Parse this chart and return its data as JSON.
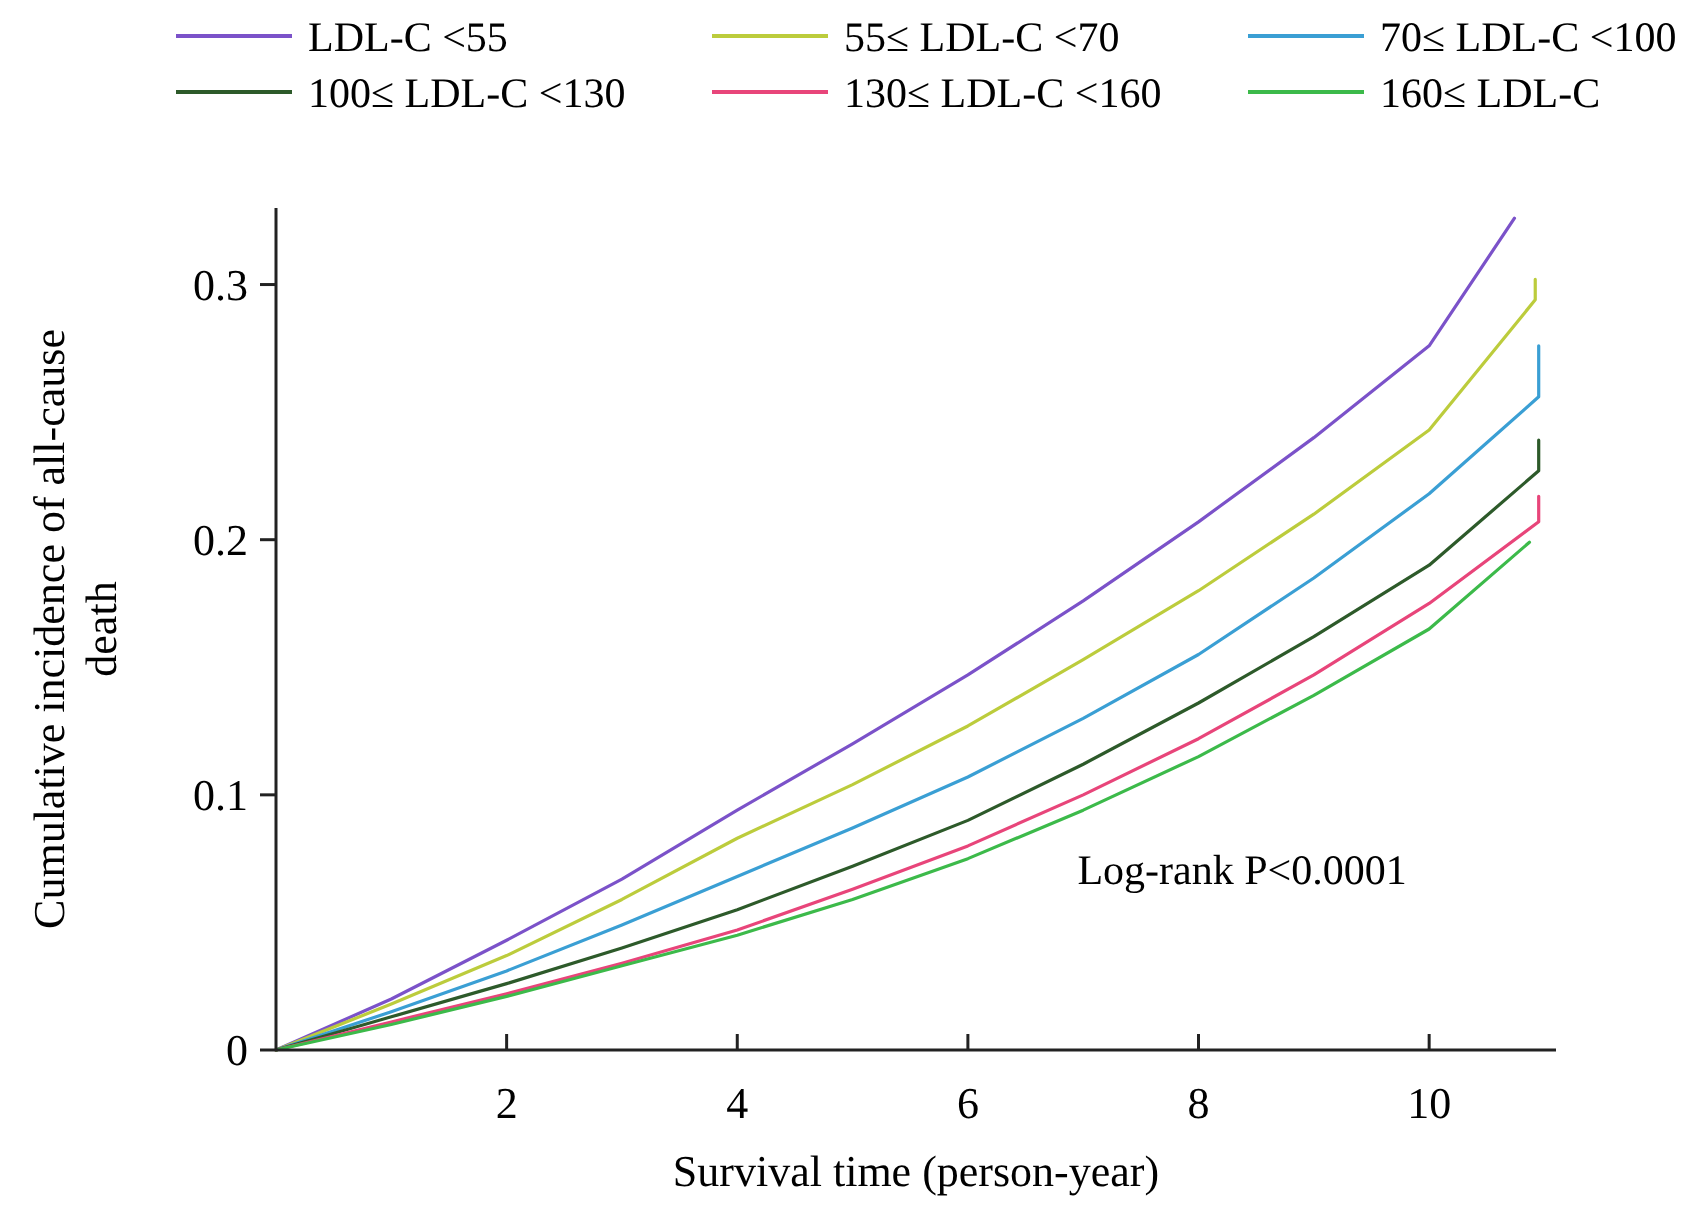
{
  "chart_data": {
    "type": "line",
    "xlabel": "Survival time (person-year)",
    "ylabel": "Cumulative incidence of all-cause death",
    "xlim": [
      0,
      11.1
    ],
    "ylim": [
      0,
      0.33
    ],
    "xticks": [
      2,
      4,
      6,
      8,
      10
    ],
    "yticks": [
      0,
      0.1,
      0.2,
      0.3
    ],
    "legend": "top",
    "grid": false,
    "marker": "none",
    "line_style": "solid",
    "annotations": [
      "Log-rank P<0.0001"
    ],
    "series": [
      {
        "name": "LDL-C <55",
        "color": "#7b52c9",
        "x": [
          0,
          1,
          2,
          3,
          4,
          5,
          6,
          7,
          8,
          9,
          10,
          10.74
        ],
        "values": [
          0,
          0.02,
          0.043,
          0.067,
          0.094,
          0.12,
          0.147,
          0.176,
          0.207,
          0.24,
          0.276,
          0.326
        ]
      },
      {
        "name": "55≤ LDL-C <70",
        "color": "#bccc3c",
        "x": [
          0,
          1,
          2,
          3,
          4,
          5,
          6,
          7,
          8,
          9,
          10,
          10.92,
          10.92
        ],
        "values": [
          0,
          0.018,
          0.037,
          0.059,
          0.083,
          0.104,
          0.127,
          0.153,
          0.18,
          0.21,
          0.243,
          0.294,
          0.302
        ]
      },
      {
        "name": "70≤ LDL-C <100",
        "color": "#3a9fd4",
        "x": [
          0,
          1,
          2,
          3,
          4,
          5,
          6,
          7,
          8,
          9,
          10,
          10.95,
          10.95
        ],
        "values": [
          0,
          0.015,
          0.031,
          0.049,
          0.068,
          0.087,
          0.107,
          0.13,
          0.155,
          0.185,
          0.218,
          0.256,
          0.276
        ]
      },
      {
        "name": "100≤ LDL-C <130",
        "color": "#2d5a2a",
        "x": [
          0,
          1,
          2,
          3,
          4,
          5,
          6,
          7,
          8,
          9,
          10,
          10.95,
          10.95
        ],
        "values": [
          0,
          0.013,
          0.026,
          0.04,
          0.055,
          0.072,
          0.09,
          0.112,
          0.136,
          0.162,
          0.19,
          0.227,
          0.239
        ]
      },
      {
        "name": "130≤ LDL-C <160",
        "color": "#e8457a",
        "x": [
          0,
          1,
          2,
          3,
          4,
          5,
          6,
          7,
          8,
          9,
          10,
          10.95,
          10.95
        ],
        "values": [
          0,
          0.011,
          0.022,
          0.034,
          0.047,
          0.063,
          0.08,
          0.1,
          0.122,
          0.147,
          0.175,
          0.207,
          0.217
        ]
      },
      {
        "name": "160≤ LDL-C",
        "color": "#3cba4a",
        "x": [
          0,
          1,
          2,
          3,
          4,
          5,
          6,
          7,
          8,
          9,
          10,
          10.87
        ],
        "values": [
          0,
          0.01,
          0.021,
          0.033,
          0.045,
          0.059,
          0.075,
          0.094,
          0.115,
          0.139,
          0.165,
          0.199
        ]
      }
    ]
  }
}
